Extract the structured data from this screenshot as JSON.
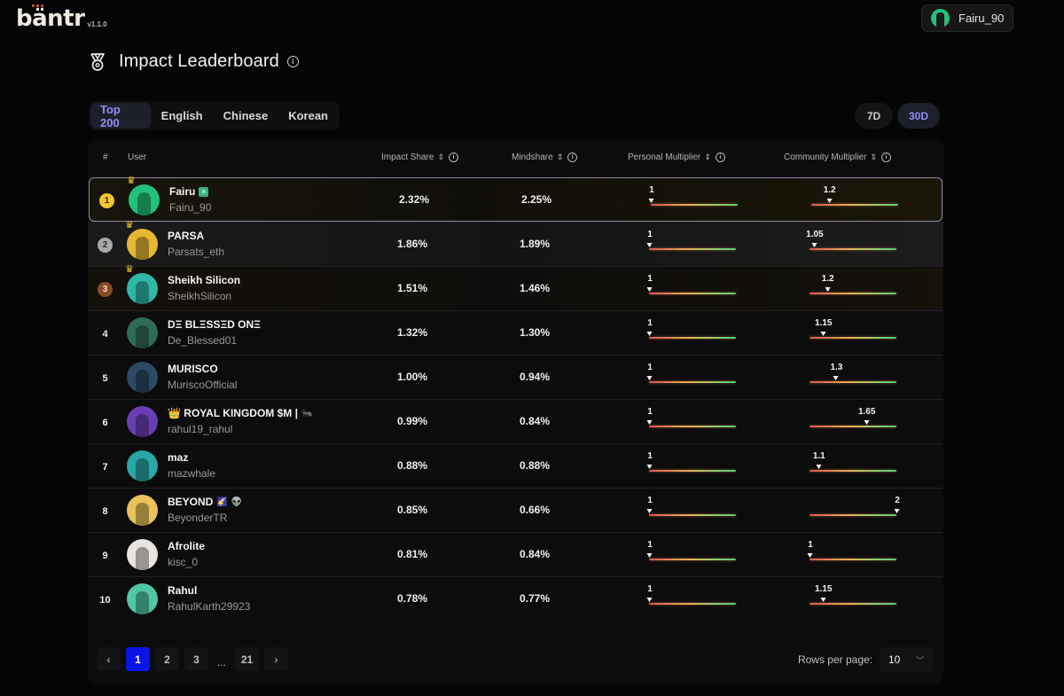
{
  "app": {
    "logo": "bantr",
    "logo_display": "bäntr",
    "version": "v1.1.0"
  },
  "account": {
    "username": "Fairu_90"
  },
  "page": {
    "title": "Impact Leaderboard"
  },
  "tabs": [
    {
      "label": "Top 200",
      "active": true
    },
    {
      "label": "English",
      "active": false
    },
    {
      "label": "Chinese",
      "active": false
    },
    {
      "label": "Korean",
      "active": false
    }
  ],
  "ranges": [
    {
      "label": "7D",
      "active": false
    },
    {
      "label": "30D",
      "active": true
    }
  ],
  "columns": {
    "rank": "#",
    "user": "User",
    "impact": "Impact Share",
    "mindshare": "Mindshare",
    "personal": "Personal Multiplier",
    "community": "Community Multiplier"
  },
  "multiplier_range": {
    "min": 1,
    "max": 2
  },
  "colors": {
    "gold": "#f4c430",
    "silver": "#a8a8a8",
    "bronze": "#8a4a22",
    "accent": "#8f8ff5",
    "page_active": "#0a14e6"
  },
  "rows": [
    {
      "rank": "1",
      "name": "Fairu",
      "badges": [
        "✳"
      ],
      "handle": "Fairu_90",
      "impact": "2.32%",
      "mindshare": "2.25%",
      "personal": 1,
      "personal_label": "1",
      "community": 1.2,
      "community_label": "1.2",
      "avatar_color": "#22c07a",
      "crown": true
    },
    {
      "rank": "2",
      "name": "PARSA",
      "badges": [],
      "handle": "Parsats_eth",
      "impact": "1.86%",
      "mindshare": "1.89%",
      "personal": 1,
      "personal_label": "1",
      "community": 1.05,
      "community_label": "1.05",
      "avatar_color": "#e6b733",
      "crown": true
    },
    {
      "rank": "3",
      "name": "Sheikh Silicon",
      "badges": [],
      "handle": "SheikhSilicon",
      "impact": "1.51%",
      "mindshare": "1.46%",
      "personal": 1,
      "personal_label": "1",
      "community": 1.2,
      "community_label": "1.2",
      "avatar_color": "#2fb8a8",
      "crown": true
    },
    {
      "rank": "4",
      "name": "DΞ BLΞSSΞD ONΞ",
      "badges": [],
      "handle": "De_Blessed01",
      "impact": "1.32%",
      "mindshare": "1.30%",
      "personal": 1,
      "personal_label": "1",
      "community": 1.15,
      "community_label": "1.15",
      "avatar_color": "#2e6b58",
      "crown": false
    },
    {
      "rank": "5",
      "name": "MURISCO",
      "badges": [],
      "handle": "MuriscoOfficial",
      "impact": "1.00%",
      "mindshare": "0.94%",
      "personal": 1,
      "personal_label": "1",
      "community": 1.3,
      "community_label": "1.3",
      "avatar_color": "#2c4a66",
      "crown": false
    },
    {
      "rank": "6",
      "name": "👑 ROYAL KINGDOM $M |",
      "badges": [
        "🐜"
      ],
      "handle": "rahul19_rahul",
      "impact": "0.99%",
      "mindshare": "0.84%",
      "personal": 1,
      "personal_label": "1",
      "community": 1.65,
      "community_label": "1.65",
      "avatar_color": "#6a3fb5",
      "crown": false
    },
    {
      "rank": "7",
      "name": "maz",
      "badges": [],
      "handle": "mazwhale",
      "impact": "0.88%",
      "mindshare": "0.88%",
      "personal": 1,
      "personal_label": "1",
      "community": 1.1,
      "community_label": "1.1",
      "avatar_color": "#2aa7a8",
      "crown": false
    },
    {
      "rank": "8",
      "name": "BEYOND",
      "badges": [
        "🌠",
        "👽"
      ],
      "handle": "BeyonderTR",
      "impact": "0.85%",
      "mindshare": "0.66%",
      "personal": 1,
      "personal_label": "1",
      "community": 2,
      "community_label": "2",
      "avatar_color": "#e9c25a",
      "crown": false
    },
    {
      "rank": "9",
      "name": "Afrolite",
      "badges": [],
      "handle": "kisc_0",
      "impact": "0.81%",
      "mindshare": "0.84%",
      "personal": 1,
      "personal_label": "1",
      "community": 1,
      "community_label": "1",
      "avatar_color": "#e8e4df",
      "crown": false
    },
    {
      "rank": "10",
      "name": "Rahul",
      "badges": [],
      "handle": "RahulKarth29923",
      "impact": "0.78%",
      "mindshare": "0.77%",
      "personal": 1,
      "personal_label": "1",
      "community": 1.15,
      "community_label": "1.15",
      "avatar_color": "#4fc7a6",
      "crown": false
    }
  ],
  "pagination": {
    "prev_icon": "chevron-left-icon",
    "next_icon": "chevron-right-icon",
    "pages": [
      "1",
      "2",
      "3"
    ],
    "ellipsis": "...",
    "last_page": "21",
    "current": "1"
  },
  "rows_per_page": {
    "label": "Rows per page:",
    "value": "10"
  }
}
